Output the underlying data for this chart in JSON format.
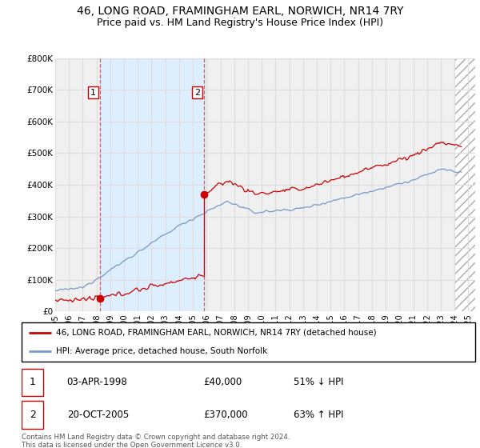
{
  "title": "46, LONG ROAD, FRAMINGHAM EARL, NORWICH, NR14 7RY",
  "subtitle": "Price paid vs. HM Land Registry's House Price Index (HPI)",
  "ylim": [
    0,
    800000
  ],
  "yticks": [
    0,
    100000,
    200000,
    300000,
    400000,
    500000,
    600000,
    700000,
    800000
  ],
  "ytick_labels": [
    "£0",
    "£100K",
    "£200K",
    "£300K",
    "£400K",
    "£500K",
    "£600K",
    "£700K",
    "£800K"
  ],
  "xmin": 1995.0,
  "xmax": 2025.5,
  "transaction1_x": 1998.25,
  "transaction1_y": 40000,
  "transaction2_x": 2005.83,
  "transaction2_y": 370000,
  "vline1_x": 1998.25,
  "vline2_x": 2005.83,
  "hatch_start": 2024.0,
  "shade_start": 1998.25,
  "shade_end": 2005.83,
  "legend_line1": "46, LONG ROAD, FRAMINGHAM EARL, NORWICH, NR14 7RY (detached house)",
  "legend_line2": "HPI: Average price, detached house, South Norfolk",
  "table_row1_label": "1",
  "table_row1_date": "03-APR-1998",
  "table_row1_price": "£40,000",
  "table_row1_hpi": "51% ↓ HPI",
  "table_row2_label": "2",
  "table_row2_date": "20-OCT-2005",
  "table_row2_price": "£370,000",
  "table_row2_hpi": "63% ↑ HPI",
  "footnote": "Contains HM Land Registry data © Crown copyright and database right 2024.\nThis data is licensed under the Open Government Licence v3.0.",
  "red_color": "#cc0000",
  "blue_color": "#7799cc",
  "shade_color": "#ddeeff",
  "bg_color": "#f0f0f0",
  "grid_color": "#dddddd",
  "title_fontsize": 10,
  "subtitle_fontsize": 9
}
